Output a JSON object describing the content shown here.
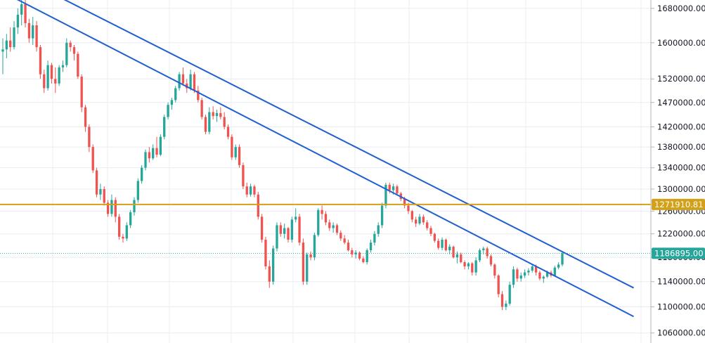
{
  "chart_data": {
    "type": "candlestick",
    "title": "",
    "xlabel": "",
    "ylabel": "",
    "y_scale": "log",
    "ylim": [
      1045000,
      1700000
    ],
    "y_ticks": [
      "1680000.00",
      "1600000.00",
      "1520000.00",
      "1470000.00",
      "1420000.00",
      "1380000.00",
      "1340000.00",
      "1300000.00",
      "1260000.00",
      "1220000.00",
      "1180000.00",
      "1140000.00",
      "1100000.00",
      "1060000.00"
    ],
    "grid": true,
    "candles": [
      [
        1580000,
        1610000,
        1530000,
        1585000
      ],
      [
        1585000,
        1620000,
        1565000,
        1605000
      ],
      [
        1605000,
        1635000,
        1580000,
        1590000
      ],
      [
        1590000,
        1650000,
        1585000,
        1635000
      ],
      [
        1635000,
        1680000,
        1620000,
        1665000
      ],
      [
        1665000,
        1700000,
        1640000,
        1690000
      ],
      [
        1690000,
        1700000,
        1635000,
        1645000
      ],
      [
        1645000,
        1655000,
        1600000,
        1610000
      ],
      [
        1610000,
        1660000,
        1595000,
        1640000
      ],
      [
        1640000,
        1650000,
        1580000,
        1590000
      ],
      [
        1590000,
        1595000,
        1520000,
        1530000
      ],
      [
        1530000,
        1540000,
        1490000,
        1500000
      ],
      [
        1500000,
        1560000,
        1495000,
        1550000
      ],
      [
        1550000,
        1555000,
        1510000,
        1520000
      ],
      [
        1520000,
        1545000,
        1490000,
        1510000
      ],
      [
        1510000,
        1550000,
        1505000,
        1545000
      ],
      [
        1545000,
        1560000,
        1535000,
        1550000
      ],
      [
        1550000,
        1610000,
        1545000,
        1600000
      ],
      [
        1600000,
        1605000,
        1580000,
        1590000
      ],
      [
        1590000,
        1595000,
        1560000,
        1575000
      ],
      [
        1575000,
        1580000,
        1520000,
        1525000
      ],
      [
        1525000,
        1530000,
        1450000,
        1460000
      ],
      [
        1460000,
        1465000,
        1410000,
        1420000
      ],
      [
        1420000,
        1425000,
        1370000,
        1380000
      ],
      [
        1380000,
        1385000,
        1330000,
        1335000
      ],
      [
        1335000,
        1340000,
        1285000,
        1290000
      ],
      [
        1290000,
        1310000,
        1280000,
        1300000
      ],
      [
        1300000,
        1305000,
        1270000,
        1275000
      ],
      [
        1275000,
        1280000,
        1250000,
        1255000
      ],
      [
        1255000,
        1290000,
        1250000,
        1280000
      ],
      [
        1280000,
        1285000,
        1240000,
        1250000
      ],
      [
        1250000,
        1255000,
        1210000,
        1215000
      ],
      [
        1215000,
        1220000,
        1205000,
        1212000
      ],
      [
        1212000,
        1240000,
        1208000,
        1235000
      ],
      [
        1235000,
        1262000,
        1230000,
        1258000
      ],
      [
        1258000,
        1285000,
        1252000,
        1280000
      ],
      [
        1280000,
        1320000,
        1275000,
        1315000
      ],
      [
        1315000,
        1345000,
        1310000,
        1340000
      ],
      [
        1340000,
        1375000,
        1335000,
        1370000
      ],
      [
        1370000,
        1380000,
        1350000,
        1358000
      ],
      [
        1358000,
        1385000,
        1355000,
        1378000
      ],
      [
        1378000,
        1400000,
        1360000,
        1365000
      ],
      [
        1365000,
        1405000,
        1362000,
        1400000
      ],
      [
        1400000,
        1445000,
        1395000,
        1440000
      ],
      [
        1440000,
        1470000,
        1435000,
        1465000
      ],
      [
        1465000,
        1480000,
        1455000,
        1475000
      ],
      [
        1475000,
        1505000,
        1470000,
        1500000
      ],
      [
        1500000,
        1535000,
        1495000,
        1530000
      ],
      [
        1530000,
        1545000,
        1505000,
        1510000
      ],
      [
        1510000,
        1520000,
        1490000,
        1500000
      ],
      [
        1500000,
        1540000,
        1495000,
        1530000
      ],
      [
        1530000,
        1535000,
        1490000,
        1495000
      ],
      [
        1495000,
        1505000,
        1470000,
        1475000
      ],
      [
        1475000,
        1480000,
        1435000,
        1440000
      ],
      [
        1440000,
        1445000,
        1405000,
        1410000
      ],
      [
        1410000,
        1460000,
        1405000,
        1450000
      ],
      [
        1450000,
        1462000,
        1435000,
        1442000
      ],
      [
        1442000,
        1455000,
        1430000,
        1448000
      ],
      [
        1448000,
        1460000,
        1435000,
        1440000
      ],
      [
        1440000,
        1450000,
        1415000,
        1420000
      ],
      [
        1420000,
        1425000,
        1395000,
        1400000
      ],
      [
        1400000,
        1405000,
        1355000,
        1360000
      ],
      [
        1360000,
        1385000,
        1355000,
        1380000
      ],
      [
        1380000,
        1385000,
        1340000,
        1345000
      ],
      [
        1345000,
        1350000,
        1300000,
        1305000
      ],
      [
        1305000,
        1312000,
        1285000,
        1290000
      ],
      [
        1290000,
        1310000,
        1286000,
        1305000
      ],
      [
        1305000,
        1308000,
        1285000,
        1290000
      ],
      [
        1290000,
        1295000,
        1245000,
        1250000
      ],
      [
        1250000,
        1255000,
        1205000,
        1210000
      ],
      [
        1210000,
        1215000,
        1160000,
        1165000
      ],
      [
        1165000,
        1175000,
        1130000,
        1140000
      ],
      [
        1140000,
        1200000,
        1135000,
        1195000
      ],
      [
        1195000,
        1240000,
        1190000,
        1235000
      ],
      [
        1235000,
        1240000,
        1215000,
        1220000
      ],
      [
        1220000,
        1238000,
        1212000,
        1230000
      ],
      [
        1230000,
        1232000,
        1205000,
        1210000
      ],
      [
        1210000,
        1250000,
        1205000,
        1245000
      ],
      [
        1245000,
        1265000,
        1240000,
        1250000
      ],
      [
        1250000,
        1255000,
        1200000,
        1205000
      ],
      [
        1205000,
        1212000,
        1135000,
        1140000
      ],
      [
        1140000,
        1188000,
        1135000,
        1185000
      ],
      [
        1185000,
        1190000,
        1175000,
        1180000
      ],
      [
        1180000,
        1222000,
        1175000,
        1218000
      ],
      [
        1218000,
        1265000,
        1215000,
        1262000
      ],
      [
        1262000,
        1270000,
        1245000,
        1255000
      ],
      [
        1255000,
        1260000,
        1235000,
        1240000
      ],
      [
        1240000,
        1245000,
        1225000,
        1230000
      ],
      [
        1230000,
        1240000,
        1222000,
        1235000
      ],
      [
        1235000,
        1238000,
        1218000,
        1222000
      ],
      [
        1222000,
        1226000,
        1208000,
        1212000
      ],
      [
        1212000,
        1218000,
        1202000,
        1205000
      ],
      [
        1205000,
        1210000,
        1190000,
        1192000
      ],
      [
        1192000,
        1196000,
        1180000,
        1185000
      ],
      [
        1185000,
        1192000,
        1178000,
        1188000
      ],
      [
        1188000,
        1190000,
        1175000,
        1178000
      ],
      [
        1178000,
        1182000,
        1170000,
        1172000
      ],
      [
        1172000,
        1195000,
        1168000,
        1192000
      ],
      [
        1192000,
        1210000,
        1188000,
        1205000
      ],
      [
        1205000,
        1225000,
        1200000,
        1220000
      ],
      [
        1220000,
        1240000,
        1215000,
        1235000
      ],
      [
        1235000,
        1275000,
        1230000,
        1270000
      ],
      [
        1270000,
        1312000,
        1265000,
        1308000
      ],
      [
        1308000,
        1312000,
        1292000,
        1298000
      ],
      [
        1298000,
        1310000,
        1290000,
        1305000
      ],
      [
        1305000,
        1308000,
        1288000,
        1292000
      ],
      [
        1292000,
        1295000,
        1278000,
        1282000
      ],
      [
        1282000,
        1286000,
        1265000,
        1270000
      ],
      [
        1270000,
        1275000,
        1255000,
        1260000
      ],
      [
        1260000,
        1262000,
        1240000,
        1245000
      ],
      [
        1245000,
        1250000,
        1232000,
        1238000
      ],
      [
        1238000,
        1255000,
        1235000,
        1250000
      ],
      [
        1250000,
        1254000,
        1236000,
        1240000
      ],
      [
        1240000,
        1244000,
        1226000,
        1230000
      ],
      [
        1230000,
        1234000,
        1216000,
        1220000
      ],
      [
        1220000,
        1222000,
        1205000,
        1208000
      ],
      [
        1208000,
        1212000,
        1193000,
        1196000
      ],
      [
        1196000,
        1214000,
        1192000,
        1210000
      ],
      [
        1210000,
        1212000,
        1190000,
        1192000
      ],
      [
        1192000,
        1202000,
        1185000,
        1198000
      ],
      [
        1198000,
        1200000,
        1178000,
        1180000
      ],
      [
        1180000,
        1190000,
        1170000,
        1185000
      ],
      [
        1185000,
        1188000,
        1170000,
        1172000
      ],
      [
        1172000,
        1175000,
        1160000,
        1165000
      ],
      [
        1165000,
        1172000,
        1160000,
        1170000
      ],
      [
        1170000,
        1172000,
        1150000,
        1155000
      ],
      [
        1155000,
        1180000,
        1150000,
        1175000
      ],
      [
        1175000,
        1195000,
        1172000,
        1192000
      ],
      [
        1192000,
        1198000,
        1185000,
        1195000
      ],
      [
        1195000,
        1198000,
        1178000,
        1182000
      ],
      [
        1182000,
        1185000,
        1165000,
        1168000
      ],
      [
        1168000,
        1170000,
        1145000,
        1150000
      ],
      [
        1150000,
        1152000,
        1115000,
        1120000
      ],
      [
        1120000,
        1125000,
        1095000,
        1100000
      ],
      [
        1100000,
        1110000,
        1095000,
        1105000
      ],
      [
        1105000,
        1140000,
        1102000,
        1135000
      ],
      [
        1135000,
        1165000,
        1130000,
        1160000
      ],
      [
        1160000,
        1163000,
        1140000,
        1145000
      ],
      [
        1145000,
        1155000,
        1140000,
        1150000
      ],
      [
        1150000,
        1160000,
        1146000,
        1155000
      ],
      [
        1155000,
        1162000,
        1150000,
        1158000
      ],
      [
        1158000,
        1168000,
        1155000,
        1165000
      ],
      [
        1165000,
        1168000,
        1150000,
        1155000
      ],
      [
        1155000,
        1158000,
        1142000,
        1145000
      ],
      [
        1145000,
        1150000,
        1138000,
        1148000
      ],
      [
        1148000,
        1158000,
        1146000,
        1155000
      ],
      [
        1155000,
        1158000,
        1147000,
        1150000
      ],
      [
        1150000,
        1166000,
        1148000,
        1163000
      ],
      [
        1163000,
        1172000,
        1160000,
        1168000
      ],
      [
        1168000,
        1190000,
        1165000,
        1186895
      ]
    ],
    "trendlines": [
      {
        "from": [
          2,
          1710000
        ],
        "to": [
          168,
          1085000
        ]
      },
      {
        "from": [
          8,
          1740000
        ],
        "to": [
          168,
          1130000
        ]
      }
    ],
    "horizontal_line": 1271910.81,
    "last_price": 1186895.0,
    "labels": {
      "horizontal_line": "1271910.81",
      "last_price": "1186895.00"
    },
    "colors": {
      "up": "#26a69a",
      "down": "#ef5350",
      "trendline": "#1f5fcf",
      "horizontal_line": "#d4a017",
      "grid": "#e8ecf2",
      "axis_text": "#131722",
      "last_price_dotted": "#26a69a"
    }
  }
}
